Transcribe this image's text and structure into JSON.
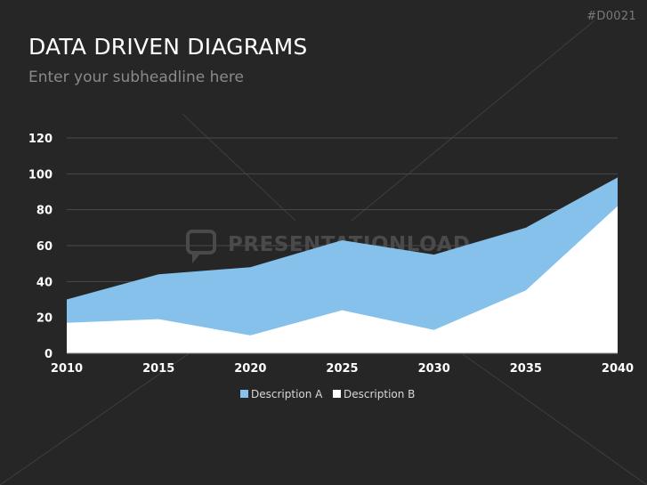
{
  "slide": {
    "code": "#D0021",
    "title": "DATA DRIVEN DIAGRAMS",
    "subtitle": "Enter your subheadline here",
    "watermark": "PRESENTATIONLOAD"
  },
  "colors": {
    "background": "#262626",
    "series_a": "#85c1ea",
    "series_b": "#ffffff",
    "gridline": "#4a4a4a"
  },
  "chart_data": {
    "type": "area",
    "x": [
      2010,
      2015,
      2020,
      2025,
      2030,
      2035,
      2040
    ],
    "xticks": [
      "2010",
      "2015",
      "2020",
      "2025",
      "2030",
      "2035",
      "2040"
    ],
    "yticks": [
      "0",
      "20",
      "40",
      "60",
      "80",
      "100",
      "120"
    ],
    "ylim": [
      0,
      120
    ],
    "grid": true,
    "legend_position": "bottom",
    "series": [
      {
        "name": "Description A",
        "values": [
          30,
          44,
          48,
          63,
          55,
          70,
          98
        ],
        "color": "#85c1ea"
      },
      {
        "name": "Description B",
        "values": [
          17,
          19,
          10,
          24,
          13,
          35,
          82
        ],
        "color": "#ffffff"
      }
    ]
  }
}
